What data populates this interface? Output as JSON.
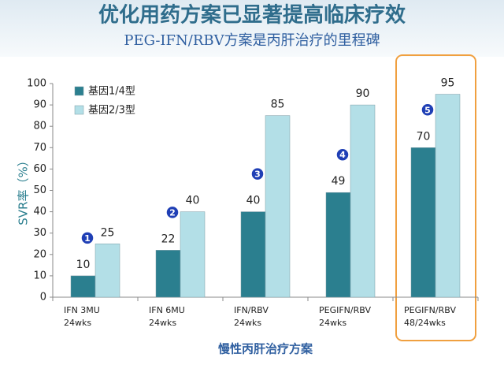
{
  "chart_data": {
    "type": "bar",
    "title": "优化用药方案已显著提高临床疗效",
    "subtitle": "PEG-IFN/RBV方案是丙肝治疗的里程碑",
    "y_label": "SVR率（%）",
    "x_label": "慢性丙肝治疗方案",
    "categories": [
      [
        "IFN 3MU",
        "24wks"
      ],
      [
        "IFN 6MU",
        "24wks"
      ],
      [
        "IFN/RBV",
        "24wks"
      ],
      [
        "PEGIFN/RBV",
        "24wks"
      ],
      [
        "PEGIFN/RBV",
        "48/24wks"
      ]
    ],
    "series": [
      {
        "name": "基因1/4型",
        "color": "#2b7f8f",
        "values": [
          10,
          22,
          40,
          49,
          70
        ]
      },
      {
        "name": "基因2/3型",
        "color": "#b3dfe7",
        "values": [
          25,
          40,
          85,
          90,
          95
        ]
      }
    ],
    "annotations": [
      "1",
      "2",
      "3",
      "4",
      "5"
    ],
    "ylim": [
      0,
      100
    ],
    "yticks": [
      0,
      10,
      20,
      30,
      40,
      50,
      60,
      70,
      80,
      90,
      100
    ],
    "legend": "upper left"
  }
}
